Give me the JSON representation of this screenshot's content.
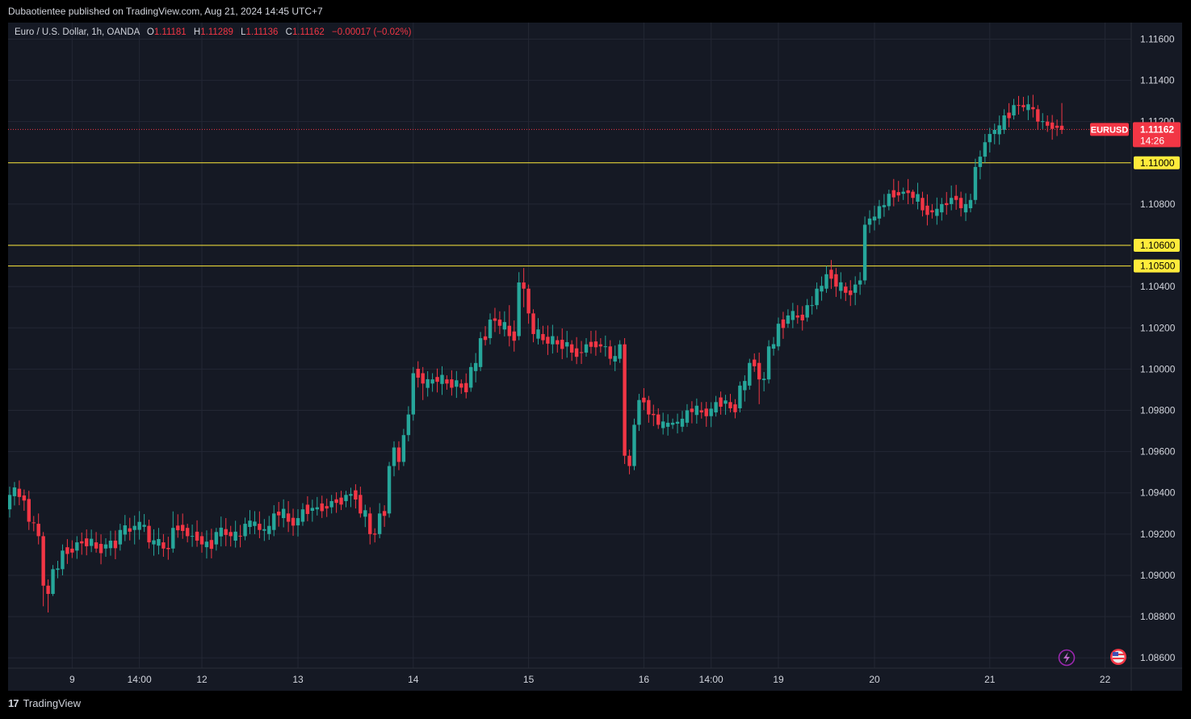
{
  "header": {
    "published": "Dubaotientee published on TradingView.com, Aug 21, 2024 14:45 UTC+7"
  },
  "legend": {
    "symbol": "Euro / U.S. Dollar, 1h, OANDA",
    "o_label": "O",
    "o": "1.11181",
    "h_label": "H",
    "h": "1.11289",
    "l_label": "L",
    "l": "1.11136",
    "c_label": "C",
    "c": "1.11162",
    "change": "−0.00017 (−0.02%)"
  },
  "footer": {
    "brand": "TradingView",
    "logo_glyph": "17"
  },
  "colors": {
    "up": "#26a69a",
    "down": "#f23645",
    "level": "#ffeb3b",
    "grid": "#232734",
    "text": "#d1d4dc",
    "bg": "#151924"
  },
  "chart_data": {
    "type": "candlestick",
    "symbol": "EURUSD",
    "interval": "1h",
    "ylim": [
      1.0855,
      1.1168
    ],
    "y_ticks": [
      "1.11600",
      "1.11400",
      "1.11200",
      "1.10800",
      "1.10400",
      "1.10200",
      "1.10000",
      "1.09800",
      "1.09600",
      "1.09400",
      "1.09200",
      "1.09000",
      "1.08800",
      "1.08600"
    ],
    "x_ticks": [
      {
        "label": "9",
        "i": 13
      },
      {
        "label": "14:00",
        "i": 27
      },
      {
        "label": "12",
        "i": 40
      },
      {
        "label": "13",
        "i": 60
      },
      {
        "label": "14",
        "i": 84
      },
      {
        "label": "15",
        "i": 108
      },
      {
        "label": "16",
        "i": 132
      },
      {
        "label": "14:00",
        "i": 146
      },
      {
        "label": "19",
        "i": 160
      },
      {
        "label": "20",
        "i": 180
      },
      {
        "label": "21",
        "i": 204
      },
      {
        "label": "22",
        "i": 228
      }
    ],
    "levels": [
      {
        "value": 1.11,
        "label": "1.11000"
      },
      {
        "value": 1.106,
        "label": "1.10600"
      },
      {
        "value": 1.105,
        "label": "1.10500"
      }
    ],
    "last_price": {
      "symbol": "EURUSD",
      "value": 1.11162,
      "label": "1.11162",
      "countdown": "14:26"
    },
    "ohlc_anchors": [
      [
        0,
        1.0932,
        1.0943,
        1.0928,
        1.0939
      ],
      [
        2,
        1.0942,
        1.0946,
        1.0934,
        1.0938
      ],
      [
        4,
        1.0937,
        1.0941,
        1.0922,
        1.0926
      ],
      [
        6,
        1.0925,
        1.093,
        1.0915,
        1.0919
      ],
      [
        7,
        1.0919,
        1.0921,
        1.0885,
        1.0895
      ],
      [
        8,
        1.0895,
        1.0898,
        1.0882,
        1.0891
      ],
      [
        9,
        1.0891,
        1.0905,
        1.089,
        1.0903
      ],
      [
        11,
        1.0903,
        1.0915,
        1.09,
        1.0912
      ],
      [
        14,
        1.0912,
        1.0919,
        1.0908,
        1.0916
      ],
      [
        18,
        1.0916,
        1.0921,
        1.0911,
        1.0913
      ],
      [
        20,
        1.0913,
        1.0918,
        1.0909,
        1.0915
      ],
      [
        23,
        1.0915,
        1.0925,
        1.0912,
        1.0922
      ],
      [
        26,
        1.0922,
        1.0929,
        1.0915,
        1.0924
      ],
      [
        29,
        1.0924,
        1.0927,
        1.0913,
        1.0916
      ],
      [
        32,
        1.0916,
        1.092,
        1.0909,
        1.0913
      ],
      [
        34,
        1.0913,
        1.0931,
        1.0911,
        1.0923
      ],
      [
        37,
        1.0923,
        1.0925,
        1.0916,
        1.0919
      ],
      [
        40,
        1.0919,
        1.0921,
        1.0911,
        1.0915
      ],
      [
        43,
        1.0915,
        1.0923,
        1.0912,
        1.0921
      ],
      [
        46,
        1.0921,
        1.0924,
        1.0914,
        1.0919
      ],
      [
        49,
        1.0919,
        1.0928,
        1.0917,
        1.0925
      ],
      [
        52,
        1.0925,
        1.0931,
        1.0918,
        1.0922
      ],
      [
        55,
        1.0922,
        1.0934,
        1.0919,
        1.093
      ],
      [
        58,
        1.093,
        1.0936,
        1.0921,
        1.0926
      ],
      [
        61,
        1.0926,
        1.0935,
        1.0924,
        1.0932
      ],
      [
        64,
        1.0932,
        1.0938,
        1.0929,
        1.0933
      ],
      [
        67,
        1.0933,
        1.0939,
        1.093,
        1.0936
      ],
      [
        70,
        1.0936,
        1.0941,
        1.0933,
        1.0939
      ],
      [
        73,
        1.0939,
        1.0943,
        1.0928,
        1.093
      ],
      [
        75,
        1.093,
        1.0933,
        1.0915,
        1.092
      ],
      [
        77,
        1.092,
        1.0935,
        1.0918,
        1.093
      ],
      [
        79,
        1.093,
        1.0955,
        1.0928,
        1.0953
      ],
      [
        80,
        1.0953,
        1.0965,
        1.0948,
        1.0962
      ],
      [
        81,
        1.0962,
        1.0965,
        1.0951,
        1.0955
      ],
      [
        82,
        1.0955,
        1.0971,
        1.0953,
        1.0968
      ],
      [
        83,
        1.0968,
        1.0982,
        1.0965,
        1.0978
      ],
      [
        84,
        1.0978,
        1.1001,
        1.0975,
        1.0998
      ],
      [
        86,
        1.0998,
        1.1001,
        1.0985,
        1.0993
      ],
      [
        88,
        1.0993,
        1.0998,
        1.0989,
        1.0995
      ],
      [
        91,
        1.0995,
        1.0997,
        1.099,
        1.0993
      ],
      [
        94,
        1.0993,
        1.0995,
        1.0988,
        1.0991
      ],
      [
        96,
        1.0991,
        1.1003,
        1.0989,
        1.1001
      ],
      [
        98,
        1.1001,
        1.1018,
        1.0999,
        1.1015
      ],
      [
        100,
        1.1015,
        1.1027,
        1.1012,
        1.1024
      ],
      [
        102,
        1.1024,
        1.1028,
        1.1017,
        1.1021
      ],
      [
        104,
        1.1021,
        1.1031,
        1.1011,
        1.1016
      ],
      [
        106,
        1.1016,
        1.1047,
        1.1014,
        1.1042
      ],
      [
        107,
        1.1042,
        1.1049,
        1.103,
        1.1039
      ],
      [
        108,
        1.1039,
        1.1041,
        1.1022,
        1.1027
      ],
      [
        109,
        1.1027,
        1.1029,
        1.1013,
        1.1017
      ],
      [
        111,
        1.1017,
        1.1021,
        1.1012,
        1.1014
      ],
      [
        114,
        1.1014,
        1.1016,
        1.1008,
        1.1012
      ],
      [
        117,
        1.1012,
        1.1014,
        1.1004,
        1.1008
      ],
      [
        120,
        1.1008,
        1.1015,
        1.1006,
        1.1012
      ],
      [
        123,
        1.1012,
        1.1015,
        1.1008,
        1.1011
      ],
      [
        125,
        1.1011,
        1.1014,
        1.1002,
        1.1005
      ],
      [
        127,
        1.1005,
        1.1014,
        1.1003,
        1.1012
      ],
      [
        128,
        1.1012,
        1.1015,
        1.0954,
        1.0958
      ],
      [
        129,
        1.0958,
        1.0961,
        1.0949,
        1.0953
      ],
      [
        130,
        1.0953,
        1.0976,
        1.0951,
        1.0973
      ],
      [
        131,
        1.0973,
        1.0988,
        1.097,
        1.0985
      ],
      [
        133,
        1.0985,
        1.0987,
        1.0974,
        1.0978
      ],
      [
        135,
        1.0978,
        1.0981,
        1.0971,
        1.0973
      ],
      [
        138,
        1.0973,
        1.0976,
        1.0971,
        1.0974
      ],
      [
        141,
        1.0974,
        1.0983,
        1.0972,
        1.098
      ],
      [
        144,
        1.098,
        1.0984,
        1.0976,
        1.0979
      ],
      [
        147,
        1.0979,
        1.0987,
        1.0977,
        1.0984
      ],
      [
        150,
        1.0984,
        1.0988,
        1.0979,
        1.0981
      ],
      [
        152,
        1.0981,
        1.0994,
        1.0979,
        1.0992
      ],
      [
        154,
        1.0992,
        1.1005,
        1.099,
        1.1003
      ],
      [
        156,
        1.1003,
        1.1008,
        1.0983,
        1.0995
      ],
      [
        158,
        1.0995,
        1.1014,
        1.0993,
        1.1011
      ],
      [
        160,
        1.1011,
        1.1025,
        1.1009,
        1.1022
      ],
      [
        162,
        1.1022,
        1.1029,
        1.102,
        1.1026
      ],
      [
        164,
        1.1026,
        1.1031,
        1.1022,
        1.1025
      ],
      [
        166,
        1.1025,
        1.1034,
        1.1023,
        1.1031
      ],
      [
        168,
        1.1031,
        1.1042,
        1.1029,
        1.1039
      ],
      [
        170,
        1.1039,
        1.105,
        1.1037,
        1.1046
      ],
      [
        172,
        1.1046,
        1.1049,
        1.1035,
        1.104
      ],
      [
        174,
        1.104,
        1.1042,
        1.1033,
        1.1037
      ],
      [
        176,
        1.1037,
        1.1045,
        1.1031,
        1.1041
      ],
      [
        177,
        1.1041,
        1.1047,
        1.1036,
        1.1043
      ],
      [
        178,
        1.1043,
        1.1074,
        1.1041,
        1.107
      ],
      [
        179,
        1.107,
        1.1077,
        1.1066,
        1.1073
      ],
      [
        181,
        1.1073,
        1.1082,
        1.107,
        1.1079
      ],
      [
        183,
        1.1079,
        1.1087,
        1.1077,
        1.1085
      ],
      [
        186,
        1.1085,
        1.1088,
        1.1082,
        1.1086
      ],
      [
        188,
        1.1086,
        1.1087,
        1.108,
        1.1083
      ],
      [
        190,
        1.1083,
        1.1086,
        1.1074,
        1.1077
      ],
      [
        192,
        1.1077,
        1.108,
        1.1073,
        1.1076
      ],
      [
        194,
        1.1076,
        1.1083,
        1.1072,
        1.108
      ],
      [
        196,
        1.108,
        1.1089,
        1.1077,
        1.1083
      ],
      [
        198,
        1.1083,
        1.1086,
        1.1074,
        1.1078
      ],
      [
        200,
        1.1078,
        1.1085,
        1.1076,
        1.1082
      ],
      [
        201,
        1.1082,
        1.1102,
        1.108,
        1.1098
      ],
      [
        202,
        1.1098,
        1.1106,
        1.1092,
        1.1103
      ],
      [
        203,
        1.1103,
        1.1114,
        1.11,
        1.111
      ],
      [
        204,
        1.111,
        1.1117,
        1.1105,
        1.1114
      ],
      [
        205,
        1.1114,
        1.1119,
        1.1109,
        1.1116
      ],
      [
        207,
        1.1116,
        1.1126,
        1.1114,
        1.1123
      ],
      [
        209,
        1.1123,
        1.1131,
        1.1121,
        1.1128
      ],
      [
        211,
        1.1128,
        1.1132,
        1.1125,
        1.1127
      ],
      [
        213,
        1.1127,
        1.1133,
        1.1122,
        1.1126
      ],
      [
        214,
        1.1126,
        1.1128,
        1.1116,
        1.112
      ],
      [
        216,
        1.112,
        1.1123,
        1.1115,
        1.1118
      ],
      [
        218,
        1.1118,
        1.1121,
        1.1113,
        1.1117
      ],
      [
        219,
        1.1118,
        1.1129,
        1.1114,
        1.1116
      ]
    ]
  }
}
